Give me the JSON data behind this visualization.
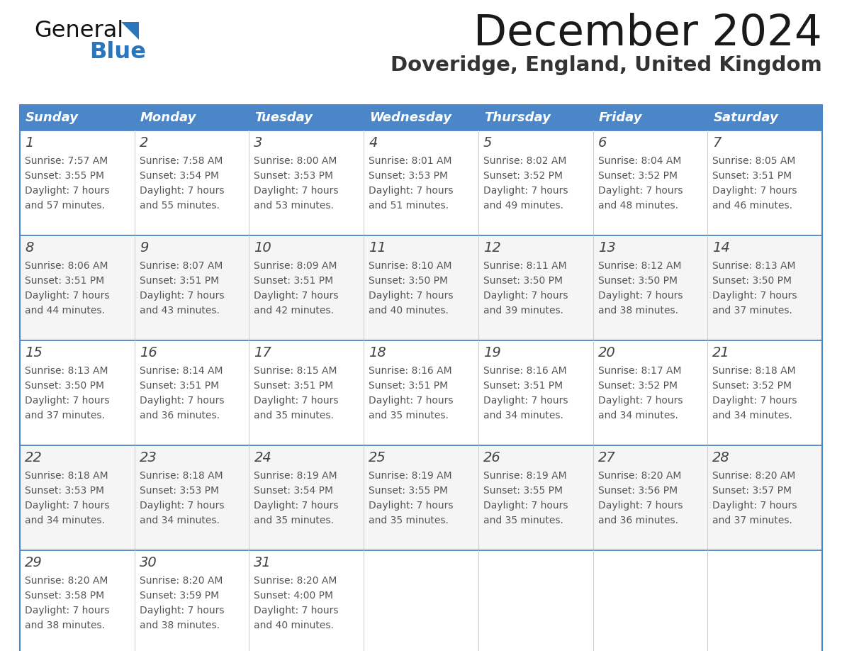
{
  "title": "December 2024",
  "subtitle": "Doveridge, England, United Kingdom",
  "header_color": "#4a86c8",
  "header_text_color": "#ffffff",
  "border_color": "#4a86c8",
  "title_color": "#1a1a1a",
  "subtitle_color": "#333333",
  "day_number_color": "#444444",
  "cell_text_color": "#555555",
  "row_bg_even": "#ffffff",
  "row_bg_odd": "#f5f5f5",
  "col_divider_color": "#cccccc",
  "days_of_week": [
    "Sunday",
    "Monday",
    "Tuesday",
    "Wednesday",
    "Thursday",
    "Friday",
    "Saturday"
  ],
  "logo_text_general": "General",
  "logo_text_blue": "Blue",
  "logo_general_color": "#111111",
  "logo_triangle_color": "#2a75bb",
  "logo_blue_color": "#2a75bb",
  "weeks": [
    [
      {
        "day": 1,
        "sunrise": "7:57 AM",
        "sunset": "3:55 PM",
        "daylight_hours": 7,
        "daylight_minutes": 57
      },
      {
        "day": 2,
        "sunrise": "7:58 AM",
        "sunset": "3:54 PM",
        "daylight_hours": 7,
        "daylight_minutes": 55
      },
      {
        "day": 3,
        "sunrise": "8:00 AM",
        "sunset": "3:53 PM",
        "daylight_hours": 7,
        "daylight_minutes": 53
      },
      {
        "day": 4,
        "sunrise": "8:01 AM",
        "sunset": "3:53 PM",
        "daylight_hours": 7,
        "daylight_minutes": 51
      },
      {
        "day": 5,
        "sunrise": "8:02 AM",
        "sunset": "3:52 PM",
        "daylight_hours": 7,
        "daylight_minutes": 49
      },
      {
        "day": 6,
        "sunrise": "8:04 AM",
        "sunset": "3:52 PM",
        "daylight_hours": 7,
        "daylight_minutes": 48
      },
      {
        "day": 7,
        "sunrise": "8:05 AM",
        "sunset": "3:51 PM",
        "daylight_hours": 7,
        "daylight_minutes": 46
      }
    ],
    [
      {
        "day": 8,
        "sunrise": "8:06 AM",
        "sunset": "3:51 PM",
        "daylight_hours": 7,
        "daylight_minutes": 44
      },
      {
        "day": 9,
        "sunrise": "8:07 AM",
        "sunset": "3:51 PM",
        "daylight_hours": 7,
        "daylight_minutes": 43
      },
      {
        "day": 10,
        "sunrise": "8:09 AM",
        "sunset": "3:51 PM",
        "daylight_hours": 7,
        "daylight_minutes": 42
      },
      {
        "day": 11,
        "sunrise": "8:10 AM",
        "sunset": "3:50 PM",
        "daylight_hours": 7,
        "daylight_minutes": 40
      },
      {
        "day": 12,
        "sunrise": "8:11 AM",
        "sunset": "3:50 PM",
        "daylight_hours": 7,
        "daylight_minutes": 39
      },
      {
        "day": 13,
        "sunrise": "8:12 AM",
        "sunset": "3:50 PM",
        "daylight_hours": 7,
        "daylight_minutes": 38
      },
      {
        "day": 14,
        "sunrise": "8:13 AM",
        "sunset": "3:50 PM",
        "daylight_hours": 7,
        "daylight_minutes": 37
      }
    ],
    [
      {
        "day": 15,
        "sunrise": "8:13 AM",
        "sunset": "3:50 PM",
        "daylight_hours": 7,
        "daylight_minutes": 37
      },
      {
        "day": 16,
        "sunrise": "8:14 AM",
        "sunset": "3:51 PM",
        "daylight_hours": 7,
        "daylight_minutes": 36
      },
      {
        "day": 17,
        "sunrise": "8:15 AM",
        "sunset": "3:51 PM",
        "daylight_hours": 7,
        "daylight_minutes": 35
      },
      {
        "day": 18,
        "sunrise": "8:16 AM",
        "sunset": "3:51 PM",
        "daylight_hours": 7,
        "daylight_minutes": 35
      },
      {
        "day": 19,
        "sunrise": "8:16 AM",
        "sunset": "3:51 PM",
        "daylight_hours": 7,
        "daylight_minutes": 34
      },
      {
        "day": 20,
        "sunrise": "8:17 AM",
        "sunset": "3:52 PM",
        "daylight_hours": 7,
        "daylight_minutes": 34
      },
      {
        "day": 21,
        "sunrise": "8:18 AM",
        "sunset": "3:52 PM",
        "daylight_hours": 7,
        "daylight_minutes": 34
      }
    ],
    [
      {
        "day": 22,
        "sunrise": "8:18 AM",
        "sunset": "3:53 PM",
        "daylight_hours": 7,
        "daylight_minutes": 34
      },
      {
        "day": 23,
        "sunrise": "8:18 AM",
        "sunset": "3:53 PM",
        "daylight_hours": 7,
        "daylight_minutes": 34
      },
      {
        "day": 24,
        "sunrise": "8:19 AM",
        "sunset": "3:54 PM",
        "daylight_hours": 7,
        "daylight_minutes": 35
      },
      {
        "day": 25,
        "sunrise": "8:19 AM",
        "sunset": "3:55 PM",
        "daylight_hours": 7,
        "daylight_minutes": 35
      },
      {
        "day": 26,
        "sunrise": "8:19 AM",
        "sunset": "3:55 PM",
        "daylight_hours": 7,
        "daylight_minutes": 35
      },
      {
        "day": 27,
        "sunrise": "8:20 AM",
        "sunset": "3:56 PM",
        "daylight_hours": 7,
        "daylight_minutes": 36
      },
      {
        "day": 28,
        "sunrise": "8:20 AM",
        "sunset": "3:57 PM",
        "daylight_hours": 7,
        "daylight_minutes": 37
      }
    ],
    [
      {
        "day": 29,
        "sunrise": "8:20 AM",
        "sunset": "3:58 PM",
        "daylight_hours": 7,
        "daylight_minutes": 38
      },
      {
        "day": 30,
        "sunrise": "8:20 AM",
        "sunset": "3:59 PM",
        "daylight_hours": 7,
        "daylight_minutes": 38
      },
      {
        "day": 31,
        "sunrise": "8:20 AM",
        "sunset": "4:00 PM",
        "daylight_hours": 7,
        "daylight_minutes": 40
      },
      null,
      null,
      null,
      null
    ]
  ]
}
